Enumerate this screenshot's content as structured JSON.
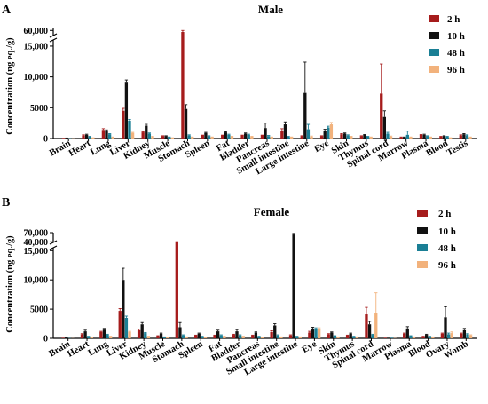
{
  "series_colors": [
    "#a61c1c",
    "#111111",
    "#1a7f95",
    "#f2b27c"
  ],
  "chart_data": [
    {
      "type": "bar",
      "panel_label": "A",
      "title": "Male",
      "ylabel": "Concentration (ng eq./g)",
      "axis_break": {
        "upper_range": [
          55000,
          62000
        ],
        "lower_range": [
          0,
          16000
        ]
      },
      "yticks": [
        "0",
        "5000",
        "10,000",
        "15,000",
        "60,000"
      ],
      "ytick_values": [
        0,
        5000,
        10000,
        15000,
        60000
      ],
      "categories": [
        "Brain",
        "Heart",
        "Lung",
        "Liver",
        "Kidney",
        "Muscle",
        "Stomach",
        "Spleen",
        "Fat",
        "Bladder",
        "Pancreas",
        "Small intestine",
        "Large intestine",
        "Eye",
        "Skin",
        "Thymus",
        "Spinal cord",
        "Marrow",
        "Plasma",
        "Blood",
        "Testis"
      ],
      "series": [
        {
          "name": "2 h",
          "values": [
            100,
            500,
            1400,
            4500,
            1000,
            400,
            58500,
            500,
            500,
            500,
            500,
            1300,
            400,
            400,
            700,
            400,
            7300,
            200,
            600,
            300,
            500
          ],
          "errors": [
            0,
            100,
            200,
            400,
            100,
            50,
            1500,
            50,
            50,
            50,
            50,
            300,
            50,
            50,
            100,
            50,
            4800,
            50,
            50,
            50,
            100
          ]
        },
        {
          "name": "10 h",
          "values": [
            150,
            600,
            1200,
            9200,
            2100,
            400,
            4800,
            900,
            1000,
            800,
            1700,
            2300,
            7400,
            1300,
            800,
            600,
            3500,
            200,
            600,
            400,
            700
          ],
          "errors": [
            0,
            100,
            200,
            300,
            200,
            50,
            700,
            100,
            100,
            100,
            800,
            400,
            5000,
            200,
            100,
            50,
            1000,
            50,
            100,
            50,
            100
          ]
        },
        {
          "name": "48 h",
          "values": [
            50,
            300,
            700,
            2900,
            800,
            200,
            500,
            400,
            600,
            600,
            400,
            300,
            1500,
            1800,
            500,
            300,
            800,
            600,
            400,
            300,
            500
          ],
          "errors": [
            0,
            50,
            100,
            200,
            100,
            50,
            100,
            50,
            100,
            100,
            100,
            50,
            800,
            200,
            100,
            50,
            200,
            600,
            50,
            50,
            100
          ]
        },
        {
          "name": "96 h",
          "values": [
            30,
            100,
            200,
            900,
            300,
            100,
            200,
            200,
            300,
            300,
            200,
            200,
            300,
            2300,
            300,
            200,
            300,
            200,
            200,
            100,
            200
          ],
          "errors": [
            0,
            20,
            50,
            100,
            50,
            20,
            50,
            50,
            50,
            50,
            50,
            50,
            100,
            300,
            50,
            50,
            100,
            50,
            50,
            20,
            50
          ]
        }
      ]
    },
    {
      "type": "bar",
      "panel_label": "B",
      "title": "Female",
      "ylabel": "Concentration (ng eq./g)",
      "axis_break": {
        "upper_range": [
          38000,
          70000
        ],
        "lower_range": [
          0,
          15500
        ]
      },
      "yticks": [
        "0",
        "5000",
        "10,000",
        "15,000",
        "40,000",
        "70,000"
      ],
      "ytick_values": [
        0,
        5000,
        10000,
        15000,
        40000,
        70000
      ],
      "categories": [
        "Brain",
        "Heart",
        "Lung",
        "Liver",
        "Kidney",
        "Muscle",
        "Stomach",
        "Spleen",
        "Fat",
        "Bladder",
        "Pancreas",
        "Small intestine",
        "Large intestine",
        "Eye",
        "Skin",
        "Thymus",
        "Spinal cord",
        "Marrow",
        "Plasma",
        "Blood",
        "Ovary",
        "Womb"
      ],
      "series": [
        {
          "name": "2 h",
          "values": [
            100,
            700,
            1100,
            4700,
            1400,
            400,
            39500,
            500,
            500,
            600,
            500,
            1100,
            500,
            1000,
            700,
            500,
            4100,
            100,
            800,
            300,
            800,
            800
          ],
          "errors": [
            0,
            100,
            100,
            400,
            200,
            50,
            1000,
            50,
            50,
            100,
            50,
            200,
            100,
            200,
            100,
            50,
            1200,
            0,
            100,
            50,
            100,
            100
          ]
        },
        {
          "name": "10 h",
          "values": [
            150,
            1200,
            1500,
            10000,
            2400,
            800,
            1900,
            800,
            1200,
            1200,
            1000,
            2200,
            64000,
            1700,
            1000,
            800,
            2400,
            100,
            1700,
            600,
            3600,
            1400
          ],
          "errors": [
            0,
            200,
            200,
            2000,
            300,
            100,
            800,
            100,
            200,
            300,
            100,
            300,
            3500,
            200,
            100,
            100,
            500,
            0,
            300,
            100,
            1800,
            300
          ]
        },
        {
          "name": "48 h",
          "values": [
            50,
            300,
            600,
            3500,
            900,
            200,
            500,
            300,
            500,
            500,
            300,
            500,
            300,
            1600,
            400,
            300,
            600,
            100,
            400,
            300,
            700,
            700
          ],
          "errors": [
            0,
            50,
            100,
            300,
            100,
            50,
            100,
            50,
            100,
            100,
            50,
            100,
            50,
            200,
            50,
            50,
            100,
            0,
            50,
            50,
            200,
            100
          ]
        },
        {
          "name": "96 h",
          "values": [
            30,
            100,
            300,
            1100,
            300,
            100,
            200,
            100,
            300,
            300,
            100,
            200,
            200,
            1600,
            200,
            200,
            4300,
            50,
            200,
            200,
            900,
            500
          ],
          "errors": [
            0,
            20,
            50,
            100,
            50,
            20,
            50,
            20,
            50,
            50,
            20,
            50,
            50,
            200,
            50,
            50,
            3500,
            0,
            50,
            50,
            200,
            100
          ]
        }
      ]
    }
  ]
}
